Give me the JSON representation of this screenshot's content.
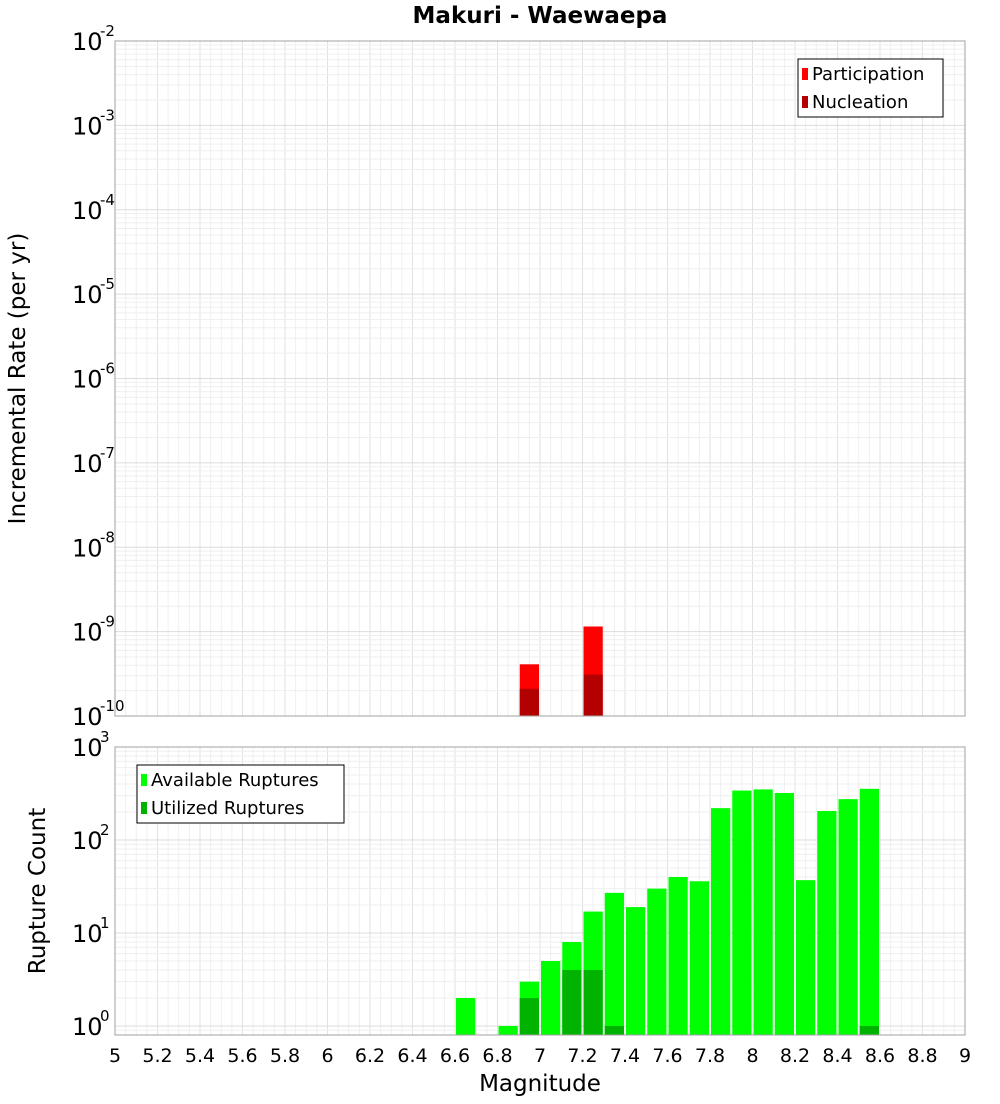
{
  "chart_data": [
    {
      "type": "bar",
      "title": "Makuri - Waewaepa",
      "xlabel": "",
      "ylabel": "Incremental Rate (per yr)",
      "yscale": "log",
      "xlim": [
        5,
        9
      ],
      "ylim": [
        1e-10,
        0.01
      ],
      "ytick_exponents": [
        -10,
        -9,
        -8,
        -7,
        -6,
        -5,
        -4,
        -3,
        -2
      ],
      "grid": true,
      "legend_position": "top-right",
      "bin_width": 0.1,
      "series": [
        {
          "name": "Participation",
          "color": "#ff0000",
          "x": [
            6.95,
            7.25
          ],
          "values": [
            4.1e-10,
            1.15e-09
          ]
        },
        {
          "name": "Nucleation",
          "color": "#b30000",
          "x": [
            6.95,
            7.25
          ],
          "values": [
            2.1e-10,
            3.1e-10
          ]
        }
      ]
    },
    {
      "type": "bar",
      "title": "",
      "xlabel": "Magnitude",
      "ylabel": "Rupture Count",
      "yscale": "log",
      "xlim": [
        5,
        9
      ],
      "ylim": [
        0.8,
        1000
      ],
      "ytick_exponents": [
        0,
        1,
        2,
        3
      ],
      "xticks": [
        "5",
        "5.2",
        "5.4",
        "5.6",
        "5.8",
        "6",
        "6.2",
        "6.4",
        "6.6",
        "6.8",
        "7",
        "7.2",
        "7.4",
        "7.6",
        "7.8",
        "8",
        "8.2",
        "8.4",
        "8.6",
        "8.8",
        "9"
      ],
      "grid": true,
      "legend_position": "top-left",
      "bin_width": 0.1,
      "series": [
        {
          "name": "Available Ruptures",
          "color": "#00ff00",
          "x": [
            6.65,
            6.85,
            6.95,
            7.05,
            7.15,
            7.25,
            7.35,
            7.45,
            7.55,
            7.65,
            7.75,
            7.85,
            7.95,
            8.05,
            8.15,
            8.25,
            8.35,
            8.45,
            8.55
          ],
          "values": [
            2,
            1,
            3,
            5,
            8,
            17,
            27,
            19,
            30,
            40,
            36,
            220,
            340,
            350,
            320,
            37,
            205,
            275,
            355
          ]
        },
        {
          "name": "Utilized Ruptures",
          "color": "#00b300",
          "x": [
            6.95,
            7.15,
            7.25,
            7.35,
            8.55
          ],
          "values": [
            2,
            4,
            4,
            1,
            1
          ]
        }
      ]
    }
  ]
}
